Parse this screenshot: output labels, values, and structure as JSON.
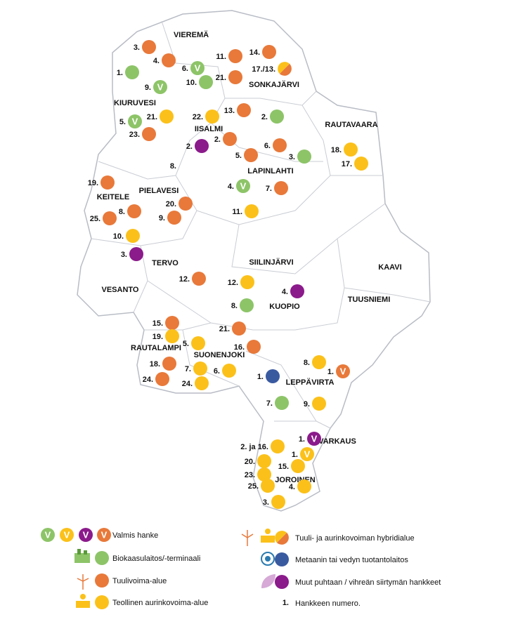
{
  "regions": [
    "VIEREMÄ",
    "KIURUVESI",
    "SONKAJÄRVI",
    "IISALMI",
    "RAUTAVAARA",
    "LAPINLAHTI",
    "PIELAVESI",
    "KEITELE",
    "TERVO",
    "SIILINJÄRVI",
    "KAAVI",
    "VESANTO",
    "KUOPIO",
    "TUUSNIEMI",
    "RAUTALAMPI",
    "SUONENJOKI",
    "LEPPÄVIRTA",
    "VARKAUS",
    "JOROINEN"
  ],
  "projects": [
    {
      "label": "3.",
      "kind": "wind"
    },
    {
      "label": "4.",
      "kind": "wind"
    },
    {
      "label": "1.",
      "kind": "biogas"
    },
    {
      "label": "6.",
      "kind": "biogas",
      "status": "V"
    },
    {
      "label": "9.",
      "kind": "biogas",
      "status": "V"
    },
    {
      "label": "10.",
      "kind": "biogas"
    },
    {
      "label": "11.",
      "kind": "wind"
    },
    {
      "label": "14.",
      "kind": "wind"
    },
    {
      "label": "21.",
      "kind": "wind"
    },
    {
      "label": "17./13.",
      "kind": "hybrid"
    },
    {
      "label": "13.",
      "kind": "wind"
    },
    {
      "label": "2.",
      "kind": "biogas"
    },
    {
      "label": "22.",
      "kind": "solar"
    },
    {
      "label": "21.",
      "kind": "solar"
    },
    {
      "label": "5.",
      "kind": "biogas",
      "status": "V"
    },
    {
      "label": "23.",
      "kind": "wind"
    },
    {
      "label": "2.",
      "kind": "other"
    },
    {
      "label": "2.",
      "kind": "wind"
    },
    {
      "label": "6.",
      "kind": "wind"
    },
    {
      "label": "5.",
      "kind": "wind"
    },
    {
      "label": "3.",
      "kind": "biogas"
    },
    {
      "label": "18.",
      "kind": "solar"
    },
    {
      "label": "17.",
      "kind": "solar"
    },
    {
      "label": "8."
    },
    {
      "label": "19.",
      "kind": "wind"
    },
    {
      "label": "4.",
      "kind": "biogas",
      "status": "V"
    },
    {
      "label": "7.",
      "kind": "wind"
    },
    {
      "label": "20.",
      "kind": "wind"
    },
    {
      "label": "8.",
      "kind": "wind"
    },
    {
      "label": "25.",
      "kind": "wind"
    },
    {
      "label": "9.",
      "kind": "wind"
    },
    {
      "label": "11.",
      "kind": "solar"
    },
    {
      "label": "10.",
      "kind": "solar"
    },
    {
      "label": "3.",
      "kind": "other"
    },
    {
      "label": "12.",
      "kind": "wind"
    },
    {
      "label": "12.",
      "kind": "solar"
    },
    {
      "label": "4.",
      "kind": "other"
    },
    {
      "label": "8.",
      "kind": "biogas"
    },
    {
      "label": "15.",
      "kind": "wind"
    },
    {
      "label": "21.",
      "kind": "wind"
    },
    {
      "label": "19.",
      "kind": "solar"
    },
    {
      "label": "5.",
      "kind": "solar"
    },
    {
      "label": "16.",
      "kind": "wind"
    },
    {
      "label": "8.",
      "kind": "solar"
    },
    {
      "label": "1.",
      "kind": "wind",
      "status": "V"
    },
    {
      "label": "18.",
      "kind": "wind"
    },
    {
      "label": "7.",
      "kind": "solar"
    },
    {
      "label": "6.",
      "kind": "solar"
    },
    {
      "label": "1.",
      "kind": "gas"
    },
    {
      "label": "24.",
      "kind": "wind"
    },
    {
      "label": "24.",
      "kind": "solar"
    },
    {
      "label": "7.",
      "kind": "biogas"
    },
    {
      "label": "9.",
      "kind": "solar"
    },
    {
      "label": "1.",
      "kind": "other",
      "status": "V"
    },
    {
      "label": "2. ja 16.",
      "kind": "solar"
    },
    {
      "label": "1.",
      "kind": "solar",
      "status": "V"
    },
    {
      "label": "20.",
      "kind": "solar"
    },
    {
      "label": "15.",
      "kind": "solar"
    },
    {
      "label": "23.",
      "kind": "solar"
    },
    {
      "label": "25.",
      "kind": "solar"
    },
    {
      "label": "4.",
      "kind": "solar"
    },
    {
      "label": "3.",
      "kind": "solar"
    }
  ],
  "legend": {
    "complete": {
      "marks": [
        "V",
        "V",
        "V",
        "V"
      ],
      "label": "Valmis hanke"
    },
    "items": [
      {
        "kind": "biogas",
        "label": "Biokaasulaitos/-terminaali"
      },
      {
        "kind": "wind",
        "label": "Tuulivoima-alue"
      },
      {
        "kind": "solar",
        "label": "Teollinen aurinkovoima-alue"
      },
      {
        "kind": "hybrid",
        "label": "Tuuli- ja aurinkovoiman hybridialue"
      },
      {
        "kind": "gas",
        "label": "Metaanin tai vedyn tuotantolaitos"
      },
      {
        "kind": "other",
        "label": "Muut puhtaan / vihreän siirtymän hankkeet"
      }
    ],
    "number": {
      "mark": "1.",
      "label": "Hankkeen numero."
    }
  }
}
